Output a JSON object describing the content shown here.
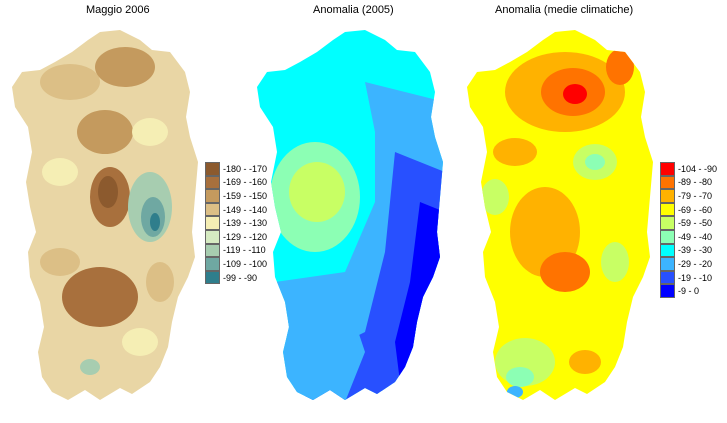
{
  "panels": [
    {
      "title": "Maggio 2006"
    },
    {
      "title": "Anomalia (2005)"
    },
    {
      "title": "Anomalia (medie climatiche)"
    }
  ],
  "legend_rainfall": [
    {
      "label": "-180 - -170",
      "color": "#8c5a2e"
    },
    {
      "label": "-169 - -160",
      "color": "#a8703d"
    },
    {
      "label": "-159 - -150",
      "color": "#c49a5e"
    },
    {
      "label": "-149 - -140",
      "color": "#dcbf86"
    },
    {
      "label": "-139 - -130",
      "color": "#f5eeb4"
    },
    {
      "label": "-129 - -120",
      "color": "#d6ebc2"
    },
    {
      "label": "-119 - -110",
      "color": "#a7cdb0"
    },
    {
      "label": "-109 - -100",
      "color": "#6fa8a2"
    },
    {
      "label": "-99 - -90",
      "color": "#2f7e8c"
    }
  ],
  "legend_anomaly": [
    {
      "label": "-104 - -90",
      "color": "#ff0000"
    },
    {
      "label": "-89 - -80",
      "color": "#ff7300"
    },
    {
      "label": "-79 - -70",
      "color": "#ffb200"
    },
    {
      "label": "-69 - -60",
      "color": "#ffff00"
    },
    {
      "label": "-59 - -50",
      "color": "#c8ff64"
    },
    {
      "label": "-49 - -40",
      "color": "#8cffb4"
    },
    {
      "label": "-39 - -30",
      "color": "#00ffff"
    },
    {
      "label": "-29 - -20",
      "color": "#3cb4ff"
    },
    {
      "label": "-19 - -10",
      "color": "#2850ff"
    },
    {
      "label": "-9 - 0",
      "color": "#0000ff"
    }
  ]
}
